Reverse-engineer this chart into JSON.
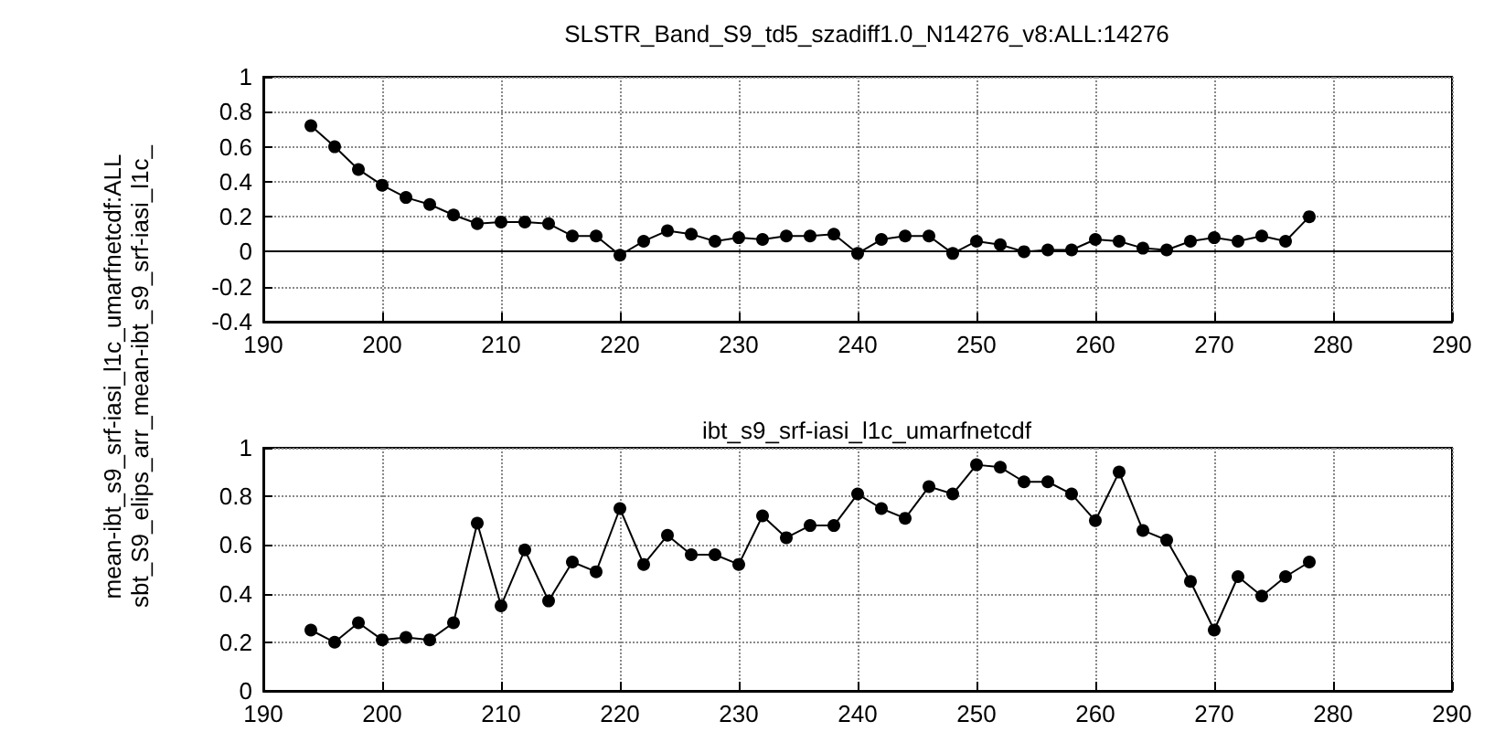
{
  "chart_data": [
    {
      "type": "line",
      "title": "SLSTR_Band_S9_td5_szadiff1.0_N14276_v8:ALL:14276",
      "ylabel": "mean-ibt_s9_srf-iasi_l1c_umarfnetcdf:ALL\nsbt_S9_elips_arr_mean-ibt_s9_srf-iasi_l1c_",
      "x": [
        194,
        196,
        198,
        200,
        202,
        204,
        206,
        208,
        210,
        212,
        214,
        216,
        218,
        220,
        222,
        224,
        226,
        228,
        230,
        232,
        234,
        236,
        238,
        240,
        242,
        244,
        246,
        248,
        250,
        252,
        254,
        256,
        258,
        260,
        262,
        264,
        266,
        268,
        270,
        272,
        274,
        276,
        278
      ],
      "series": [
        {
          "color": "#000000",
          "values": [
            0.72,
            0.6,
            0.47,
            0.38,
            0.31,
            0.27,
            0.21,
            0.16,
            0.17,
            0.17,
            0.16,
            0.09,
            0.09,
            -0.02,
            0.06,
            0.12,
            0.1,
            0.06,
            0.08,
            0.07,
            0.09,
            0.09,
            0.1,
            -0.01,
            0.07,
            0.09,
            0.09,
            -0.01,
            0.06,
            0.04,
            0.0,
            0.01,
            0.01,
            0.07,
            0.06,
            0.02,
            0.01,
            0.06,
            0.08,
            0.06,
            0.09,
            0.06,
            0.2
          ]
        }
      ],
      "xlim": [
        190,
        290
      ],
      "xticks": [
        190,
        200,
        210,
        220,
        230,
        240,
        250,
        260,
        270,
        280,
        290
      ],
      "ylim": [
        -0.4,
        1
      ],
      "yticks": [
        -0.4,
        -0.2,
        0,
        0.2,
        0.4,
        0.6,
        0.8,
        1
      ],
      "grid": true,
      "marker": "circle",
      "ref_lines": [
        {
          "axis": "y",
          "value": 0,
          "color": "#000000"
        }
      ]
    },
    {
      "type": "line",
      "title": "ibt_s9_srf-iasi_l1c_umarfnetcdf",
      "x": [
        194,
        196,
        198,
        200,
        202,
        204,
        206,
        208,
        210,
        212,
        214,
        216,
        218,
        220,
        222,
        224,
        226,
        228,
        230,
        232,
        234,
        236,
        238,
        240,
        242,
        244,
        246,
        248,
        250,
        252,
        254,
        256,
        258,
        260,
        262,
        264,
        266,
        268,
        270,
        272,
        274,
        276,
        278
      ],
      "series": [
        {
          "color": "#000000",
          "values": [
            0.25,
            0.2,
            0.28,
            0.21,
            0.22,
            0.21,
            0.28,
            0.69,
            0.35,
            0.58,
            0.37,
            0.53,
            0.49,
            0.75,
            0.52,
            0.64,
            0.56,
            0.56,
            0.52,
            0.72,
            0.63,
            0.68,
            0.68,
            0.81,
            0.75,
            0.71,
            0.84,
            0.81,
            0.93,
            0.92,
            0.86,
            0.86,
            0.81,
            0.7,
            0.9,
            0.66,
            0.62,
            0.45,
            0.25,
            0.47,
            0.39,
            0.47,
            0.53
          ]
        }
      ],
      "xlim": [
        190,
        290
      ],
      "xticks": [
        190,
        200,
        210,
        220,
        230,
        240,
        250,
        260,
        270,
        280,
        290
      ],
      "ylim": [
        0,
        1
      ],
      "yticks": [
        0,
        0.2,
        0.4,
        0.6,
        0.8,
        1
      ],
      "grid": true,
      "marker": "circle"
    }
  ]
}
